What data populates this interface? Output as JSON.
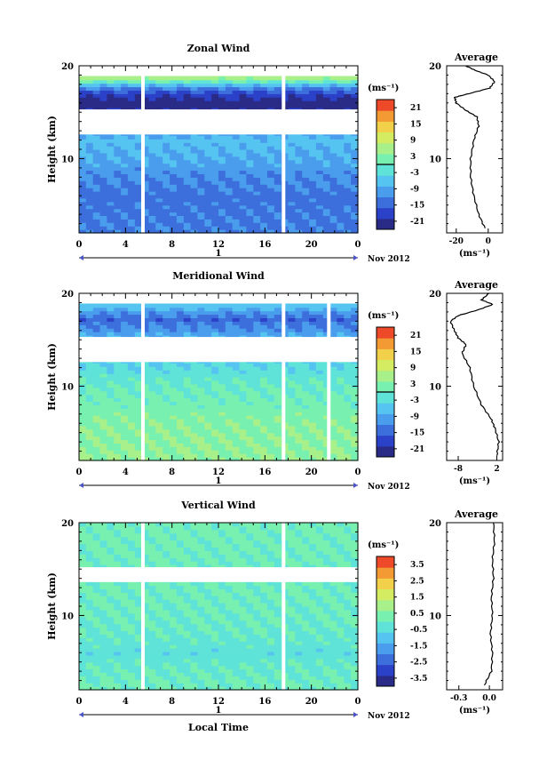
{
  "chart_data": [
    {
      "type": "heatmap",
      "title": "Zonal Wind",
      "ylabel": "Height (km)",
      "ylim": [
        2,
        20
      ],
      "y_ticks": [
        "20",
        "10"
      ],
      "x_ticks": [
        "0",
        "4",
        "8",
        "12",
        "16",
        "20",
        "0"
      ],
      "xlim": [
        0,
        24
      ],
      "day_label": "1",
      "date_label": "Nov 2012",
      "colorbar": {
        "unit": "(ms⁻¹)",
        "range": [
          -24,
          24
        ],
        "ticks": [
          "21",
          "15",
          "9",
          "3",
          "-3",
          "-9",
          "-15",
          "-21"
        ],
        "zero_line": true
      },
      "data_gaps_hours": [
        5.5,
        17.6
      ],
      "field_by_height": [
        {
          "height_km": 3,
          "value": -13
        },
        {
          "height_km": 6,
          "value": -14
        },
        {
          "height_km": 9,
          "value": -10
        },
        {
          "height_km": 12,
          "value": -6
        },
        {
          "height_km": 16,
          "value": -24
        },
        {
          "height_km": 17.5,
          "value": -14
        },
        {
          "height_km": 18.7,
          "value": 6
        }
      ],
      "average": {
        "title": "Average",
        "xlabel": "(ms⁻¹)",
        "x_ticks": [
          "-20",
          "0"
        ],
        "xlim": [
          -26,
          9
        ],
        "profile": [
          {
            "h": 2.5,
            "v": -2
          },
          {
            "h": 4,
            "v": -6
          },
          {
            "h": 6,
            "v": -9
          },
          {
            "h": 8,
            "v": -11
          },
          {
            "h": 10,
            "v": -11
          },
          {
            "h": 12,
            "v": -9
          },
          {
            "h": 13.5,
            "v": -6
          },
          {
            "h": 14.5,
            "v": -7
          },
          {
            "h": 15.2,
            "v": -14
          },
          {
            "h": 16,
            "v": -20
          },
          {
            "h": 16.6,
            "v": -21
          },
          {
            "h": 17,
            "v": -12
          },
          {
            "h": 17.6,
            "v": 1
          },
          {
            "h": 18.3,
            "v": 4
          },
          {
            "h": 19,
            "v": 0
          },
          {
            "h": 19.5,
            "v": -8
          },
          {
            "h": 20,
            "v": -14
          }
        ]
      }
    },
    {
      "type": "heatmap",
      "title": "Meridional Wind",
      "ylabel": "Height (km)",
      "ylim": [
        2,
        20
      ],
      "y_ticks": [
        "20",
        "10"
      ],
      "x_ticks": [
        "0",
        "4",
        "8",
        "12",
        "16",
        "20",
        "0"
      ],
      "xlim": [
        0,
        24
      ],
      "day_label": "1",
      "date_label": "Nov 2012",
      "colorbar": {
        "unit": "(ms⁻¹)",
        "range": [
          -24,
          24
        ],
        "ticks": [
          "21",
          "15",
          "9",
          "3",
          "-3",
          "-9",
          "-15",
          "-21"
        ],
        "zero_line": true
      },
      "data_gaps_hours": [
        5.5,
        17.6,
        21.5
      ],
      "field_by_height": [
        {
          "height_km": 3,
          "value": 4
        },
        {
          "height_km": 6,
          "value": 3
        },
        {
          "height_km": 9,
          "value": 1
        },
        {
          "height_km": 12,
          "value": -3
        },
        {
          "height_km": 15.3,
          "value": -8
        },
        {
          "height_km": 17.3,
          "value": -15
        },
        {
          "height_km": 18.6,
          "value": -6
        }
      ],
      "average": {
        "title": "Average",
        "xlabel": "(ms⁻¹)",
        "x_ticks": [
          "-8",
          "2"
        ],
        "xlim": [
          -11,
          3.5
        ],
        "profile": [
          {
            "h": 2.5,
            "v": 2
          },
          {
            "h": 4,
            "v": 2.5
          },
          {
            "h": 5.5,
            "v": 1.5
          },
          {
            "h": 6.5,
            "v": 0.5
          },
          {
            "h": 8,
            "v": -2
          },
          {
            "h": 10,
            "v": -4
          },
          {
            "h": 12,
            "v": -5
          },
          {
            "h": 13.5,
            "v": -7
          },
          {
            "h": 14.5,
            "v": -6
          },
          {
            "h": 15.2,
            "v": -8
          },
          {
            "h": 16,
            "v": -9
          },
          {
            "h": 17,
            "v": -10
          },
          {
            "h": 17.6,
            "v": -8
          },
          {
            "h": 18.2,
            "v": -3
          },
          {
            "h": 18.8,
            "v": 1
          },
          {
            "h": 19.3,
            "v": -2
          },
          {
            "h": 20,
            "v": 0
          }
        ]
      }
    },
    {
      "type": "heatmap",
      "title": "Vertical Wind",
      "ylabel": "Height (km)",
      "ylim": [
        2,
        20
      ],
      "y_ticks": [
        "20",
        "10"
      ],
      "x_ticks": [
        "0",
        "4",
        "8",
        "12",
        "16",
        "20",
        "0"
      ],
      "xlim": [
        0,
        24
      ],
      "day_label": "1",
      "date_label": "Nov 2012",
      "xlabel": "Local Time",
      "colorbar": {
        "unit": "(ms⁻¹)",
        "range": [
          -4,
          4
        ],
        "ticks": [
          "3.5",
          "2.5",
          "1.5",
          "0.5",
          "-0.5",
          "-1.5",
          "-2.5",
          "-3.5"
        ],
        "zero_line": false
      },
      "data_gaps_hours": [
        5.5,
        17.6
      ],
      "field_by_height": [
        {
          "height_km": 3,
          "value": 0.1
        },
        {
          "height_km": 6,
          "value": -0.4
        },
        {
          "height_km": 9,
          "value": 0
        },
        {
          "height_km": 12,
          "value": 0.1
        },
        {
          "height_km": 16,
          "value": 0.1
        },
        {
          "height_km": 19,
          "value": 0.2
        }
      ],
      "average": {
        "title": "Average",
        "xlabel": "(ms⁻¹)",
        "x_ticks": [
          "-0.3",
          "0.0"
        ],
        "xlim": [
          -0.42,
          0.13
        ],
        "profile": [
          {
            "h": 2.5,
            "v": -0.05
          },
          {
            "h": 4,
            "v": 0.02
          },
          {
            "h": 6,
            "v": 0.03
          },
          {
            "h": 8,
            "v": 0.01
          },
          {
            "h": 10,
            "v": 0.03
          },
          {
            "h": 12,
            "v": 0.02
          },
          {
            "h": 14,
            "v": 0.04
          },
          {
            "h": 16,
            "v": 0.03
          },
          {
            "h": 18,
            "v": 0.05
          },
          {
            "h": 20,
            "v": 0.04
          }
        ]
      }
    }
  ]
}
